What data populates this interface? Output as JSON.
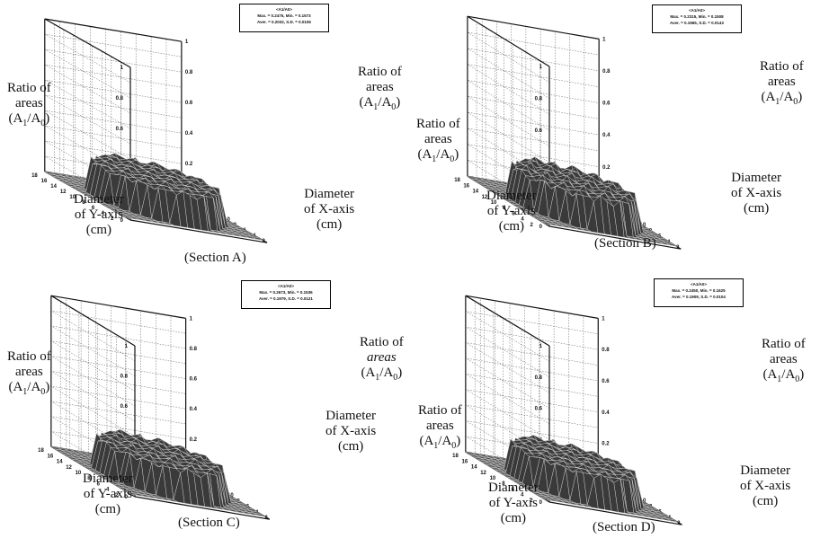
{
  "chart_data": [
    {
      "type": "surface",
      "section_label": "(Section A)",
      "z_label": [
        "Ratio of",
        "areas",
        "(A",
        "1",
        "/A",
        "0",
        ")"
      ],
      "y_label": [
        "Diameter",
        "of Y-axis",
        "(cm)"
      ],
      "x_label": [
        "Diameter",
        "of X-axis",
        "(cm)"
      ],
      "z_ticks": [
        "0",
        "0.2",
        "0.4",
        "0.6",
        "0.8",
        "1"
      ],
      "xy_ticks": [
        "2",
        "4",
        "6",
        "8",
        "10",
        "12",
        "14",
        "16",
        "18"
      ],
      "stats": {
        "title": "<A1/A0>",
        "line1": "Max. = 0.2475, Min. = 0.1573",
        "line2": "Aver. = 0.2032, S.D. = 0.0105"
      },
      "max": 0.2475,
      "min": 0.1573,
      "aver": 0.2032,
      "sd": 0.0105,
      "zlim": [
        0,
        1
      ],
      "xlim": [
        0,
        18
      ],
      "ylim": [
        0,
        18
      ]
    },
    {
      "type": "surface",
      "section_label": "(Section B)",
      "z_label": [
        "Ratio of",
        "areas",
        "(A",
        "1",
        "/A",
        "0",
        ")"
      ],
      "y_label": [
        "Diameter",
        "of Y-axis",
        "(cm)"
      ],
      "x_label": [
        "Diameter",
        "of X-axis",
        "(cm)"
      ],
      "z_ticks": [
        "0",
        "0.2",
        "0.4",
        "0.6",
        "0.8",
        "1"
      ],
      "xy_ticks": [
        "2",
        "4",
        "6",
        "8",
        "10",
        "12",
        "14",
        "16",
        "18"
      ],
      "stats": {
        "title": "<A1/A0>",
        "line1": "Max. = 0.2315, Min. = 0.1508",
        "line2": "Aver. = 0.1965, S.D. = 0.0143"
      },
      "max": 0.2315,
      "min": 0.1508,
      "aver": 0.1965,
      "sd": 0.0143,
      "zlim": [
        0,
        1
      ],
      "xlim": [
        0,
        18
      ],
      "ylim": [
        0,
        18
      ]
    },
    {
      "type": "surface",
      "section_label": "(Section C)",
      "z_label": [
        "Ratio of",
        "areas",
        "(A",
        "1",
        "/A",
        "0",
        ")"
      ],
      "y_label": [
        "Diameter",
        "of Y-axis",
        "(cm)"
      ],
      "x_label": [
        "Diameter",
        "of X-axis",
        "(cm)"
      ],
      "z_ticks": [
        "0",
        "0.2",
        "0.4",
        "0.6",
        "0.8",
        "1"
      ],
      "xy_ticks": [
        "2",
        "4",
        "6",
        "8",
        "10",
        "12",
        "14",
        "16",
        "18"
      ],
      "stats": {
        "title": "<A1/A0>",
        "line1": "Max. = 0.2673, Min. = 0.1536",
        "line2": "Aver. = 0.1979, S.D. = 0.0121"
      },
      "max": 0.2673,
      "min": 0.1536,
      "aver": 0.1979,
      "sd": 0.0121,
      "zlim": [
        0,
        1
      ],
      "xlim": [
        0,
        18
      ],
      "ylim": [
        0,
        18
      ]
    },
    {
      "type": "surface",
      "section_label": "(Section D)",
      "z_label": [
        "Ratio of",
        "areas",
        "(A",
        "1",
        "/A",
        "0",
        ")"
      ],
      "y_label": [
        "Diameter",
        "of Y-axis",
        "(cm)"
      ],
      "x_label": [
        "Diameter",
        "of X-axis",
        "(cm)"
      ],
      "z_ticks": [
        "0",
        "0.2",
        "0.4",
        "0.6",
        "0.8",
        "1"
      ],
      "xy_ticks": [
        "2",
        "4",
        "6",
        "8",
        "10",
        "12",
        "14",
        "16",
        "18"
      ],
      "stats": {
        "title": "<A1/A0>",
        "line1": "Max. = 0.2450, Min. = 0.1625",
        "line2": "Aver. = 0.1909, S.D. = 0.0104"
      },
      "max": 0.245,
      "min": 0.1625,
      "aver": 0.1909,
      "sd": 0.0104,
      "zlim": [
        0,
        1
      ],
      "xlim": [
        0,
        18
      ],
      "ylim": [
        0,
        18
      ]
    }
  ]
}
